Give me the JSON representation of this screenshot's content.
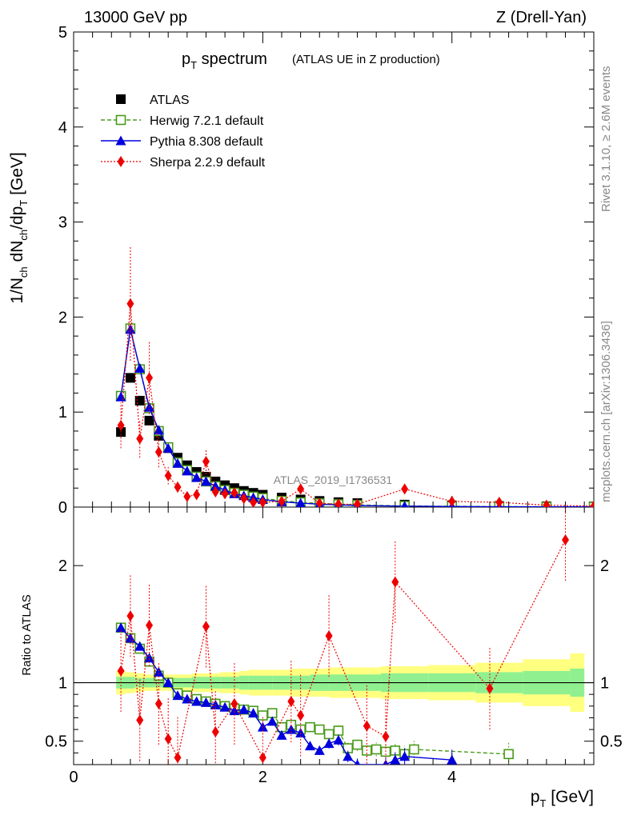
{
  "header": {
    "left": "13000 GeV pp",
    "right": "Z (Drell-Yan)"
  },
  "title": {
    "main": "p",
    "main_sub": "T",
    "main_rest": " spectrum",
    "detail": "(ATLAS UE in Z production)"
  },
  "side": {
    "rivet": "Rivet 3.1.10, ≥ 2.6M events",
    "mcplots": "mcplots.cern.ch [arXiv:1306.3436]"
  },
  "watermark": "ATLAS_2019_I1736531",
  "ratio_ylabel": "Ratio to ATLAS",
  "colors": {
    "atlas": "#000000",
    "herwig": "#4a9a1a",
    "pythia": "#0000dd",
    "sherpa": "#ee0000",
    "band_outer": "#ffff80",
    "band_inner": "#90f090"
  },
  "chart_data": {
    "type": "line",
    "xlabel": "p_T [GeV]",
    "ylabel": "1/N_ch dN_ch/dp_T [GeV]",
    "xlim": [
      0,
      5.5
    ],
    "ylim": [
      0,
      5
    ],
    "ratio_ylim": [
      0.34,
      2.3
    ],
    "xticks": [
      "0",
      "2",
      "4"
    ],
    "yticks": [
      "0",
      "1",
      "2",
      "3",
      "4",
      "5"
    ],
    "ratio_yticks": [
      "0.5",
      "1",
      "2"
    ],
    "legend_position": "top-left",
    "series": [
      {
        "name": "ATLAS",
        "x": [
          0.5,
          0.6,
          0.7,
          0.8,
          0.9,
          1.0,
          1.1,
          1.2,
          1.3,
          1.4,
          1.5,
          1.6,
          1.7,
          1.8,
          1.9,
          2.0,
          2.2,
          2.4,
          2.6,
          2.8,
          3.0,
          3.5,
          4.0,
          4.5,
          5.0,
          5.5
        ],
        "y": [
          0.79,
          1.36,
          1.12,
          0.91,
          0.75,
          0.62,
          0.52,
          0.44,
          0.37,
          0.32,
          0.27,
          0.23,
          0.2,
          0.17,
          0.15,
          0.13,
          0.1,
          0.08,
          0.065,
          0.052,
          0.042,
          0.026,
          0.018,
          0.012,
          0.009,
          0.007
        ]
      },
      {
        "name": "Herwig 7.2.1 default",
        "x": [
          0.5,
          0.6,
          0.7,
          0.8,
          0.9,
          1.0,
          1.1,
          1.2,
          1.3,
          1.4,
          1.5,
          1.6,
          1.7,
          1.8,
          1.9,
          2.0,
          2.2,
          2.4,
          2.6,
          2.8,
          3.0,
          3.5,
          4.0,
          4.5,
          5.0,
          5.5
        ],
        "y": [
          1.17,
          1.88,
          1.45,
          1.04,
          0.8,
          0.63,
          0.47,
          0.39,
          0.32,
          0.27,
          0.22,
          0.18,
          0.15,
          0.13,
          0.11,
          0.095,
          0.065,
          0.05,
          0.039,
          0.03,
          0.022,
          0.012,
          0.008,
          0.005,
          0.003,
          0.003
        ]
      },
      {
        "name": "Pythia 8.308 default",
        "x": [
          0.5,
          0.6,
          0.7,
          0.8,
          0.9,
          1.0,
          1.1,
          1.2,
          1.3,
          1.4,
          1.5,
          1.6,
          1.7,
          1.8,
          1.9,
          2.0,
          2.2,
          2.4,
          2.6,
          2.8,
          3.0,
          3.5,
          4.0,
          4.5,
          5.0,
          5.5
        ],
        "y": [
          1.16,
          1.87,
          1.46,
          1.05,
          0.81,
          0.62,
          0.46,
          0.38,
          0.31,
          0.27,
          0.22,
          0.18,
          0.14,
          0.12,
          0.1,
          0.08,
          0.055,
          0.042,
          0.03,
          0.024,
          0.016,
          0.01,
          0.006,
          0.004,
          0.003,
          0.002
        ]
      },
      {
        "name": "Sherpa 2.2.9 default",
        "x": [
          0.5,
          0.6,
          0.7,
          0.8,
          0.9,
          1.0,
          1.1,
          1.2,
          1.3,
          1.4,
          1.5,
          1.6,
          1.7,
          1.8,
          1.9,
          2.0,
          2.2,
          2.4,
          2.6,
          2.8,
          3.0,
          3.5,
          4.0,
          4.5,
          5.0,
          5.5
        ],
        "y": [
          0.86,
          2.14,
          0.72,
          1.36,
          0.58,
          0.33,
          0.21,
          0.11,
          0.13,
          0.48,
          0.16,
          0.14,
          0.15,
          0.09,
          0.05,
          0.05,
          0.06,
          0.19,
          0.04,
          0.03,
          0.03,
          0.19,
          0.06,
          0.05,
          0.02,
          0.01
        ]
      }
    ],
    "ratio_series": [
      {
        "name": "Herwig 7.2.1 default",
        "x": [
          0.5,
          0.6,
          0.7,
          0.8,
          0.9,
          1.0,
          1.1,
          1.2,
          1.3,
          1.4,
          1.5,
          1.6,
          1.7,
          1.8,
          1.9,
          2.0,
          2.1,
          2.2,
          2.3,
          2.4,
          2.5,
          2.6,
          2.7,
          2.8,
          2.9,
          3.0,
          3.1,
          3.2,
          3.3,
          3.4,
          3.5,
          3.6,
          4.6
        ],
        "y": [
          1.47,
          1.38,
          1.29,
          1.18,
          1.06,
          1.0,
          0.91,
          0.89,
          0.86,
          0.84,
          0.82,
          0.8,
          0.78,
          0.77,
          0.76,
          0.72,
          0.74,
          0.62,
          0.64,
          0.6,
          0.62,
          0.6,
          0.56,
          0.59,
          0.44,
          0.47,
          0.42,
          0.43,
          0.41,
          0.42,
          0.39,
          0.43,
          0.39
        ]
      },
      {
        "name": "Pythia 8.308 default",
        "x": [
          0.5,
          0.6,
          0.7,
          0.8,
          0.9,
          1.0,
          1.1,
          1.2,
          1.3,
          1.4,
          1.5,
          1.6,
          1.7,
          1.8,
          1.9,
          2.0,
          2.1,
          2.2,
          2.3,
          2.4,
          2.5,
          2.6,
          2.7,
          2.8,
          2.9,
          3.0,
          3.3,
          3.4,
          3.5,
          4.0
        ],
        "y": [
          1.47,
          1.38,
          1.31,
          1.21,
          1.09,
          1.0,
          0.89,
          0.86,
          0.84,
          0.83,
          0.81,
          0.79,
          0.76,
          0.77,
          0.74,
          0.62,
          0.67,
          0.55,
          0.6,
          0.57,
          0.46,
          0.42,
          0.48,
          0.51,
          0.37,
          0.3,
          0.3,
          0.34,
          0.37,
          0.34
        ]
      },
      {
        "name": "Sherpa 2.2.9 default",
        "x": [
          0.5,
          0.6,
          0.7,
          0.8,
          0.9,
          1.0,
          1.1,
          1.4,
          1.5,
          1.7,
          2.0,
          2.3,
          2.4,
          2.7,
          3.1,
          3.3,
          3.4,
          4.4,
          5.2
        ],
        "y": [
          1.1,
          1.57,
          0.68,
          1.49,
          0.82,
          0.52,
          0.36,
          1.48,
          0.58,
          0.82,
          0.36,
          0.84,
          0.72,
          1.4,
          0.63,
          0.54,
          1.86,
          0.95,
          2.22
        ]
      }
    ],
    "band_inner": [
      0.05,
      0.05,
      0.04,
      0.04,
      0.04,
      0.04,
      0.04,
      0.04,
      0.05,
      0.05,
      0.05,
      0.05,
      0.05,
      0.06,
      0.06,
      0.06,
      0.06,
      0.06,
      0.07,
      0.07,
      0.07,
      0.08,
      0.08,
      0.09,
      0.1,
      0.12
    ],
    "band_outer": [
      0.1,
      0.09,
      0.08,
      0.07,
      0.07,
      0.07,
      0.07,
      0.07,
      0.08,
      0.08,
      0.08,
      0.09,
      0.09,
      0.1,
      0.11,
      0.11,
      0.11,
      0.12,
      0.12,
      0.13,
      0.13,
      0.14,
      0.15,
      0.17,
      0.2,
      0.25
    ]
  }
}
